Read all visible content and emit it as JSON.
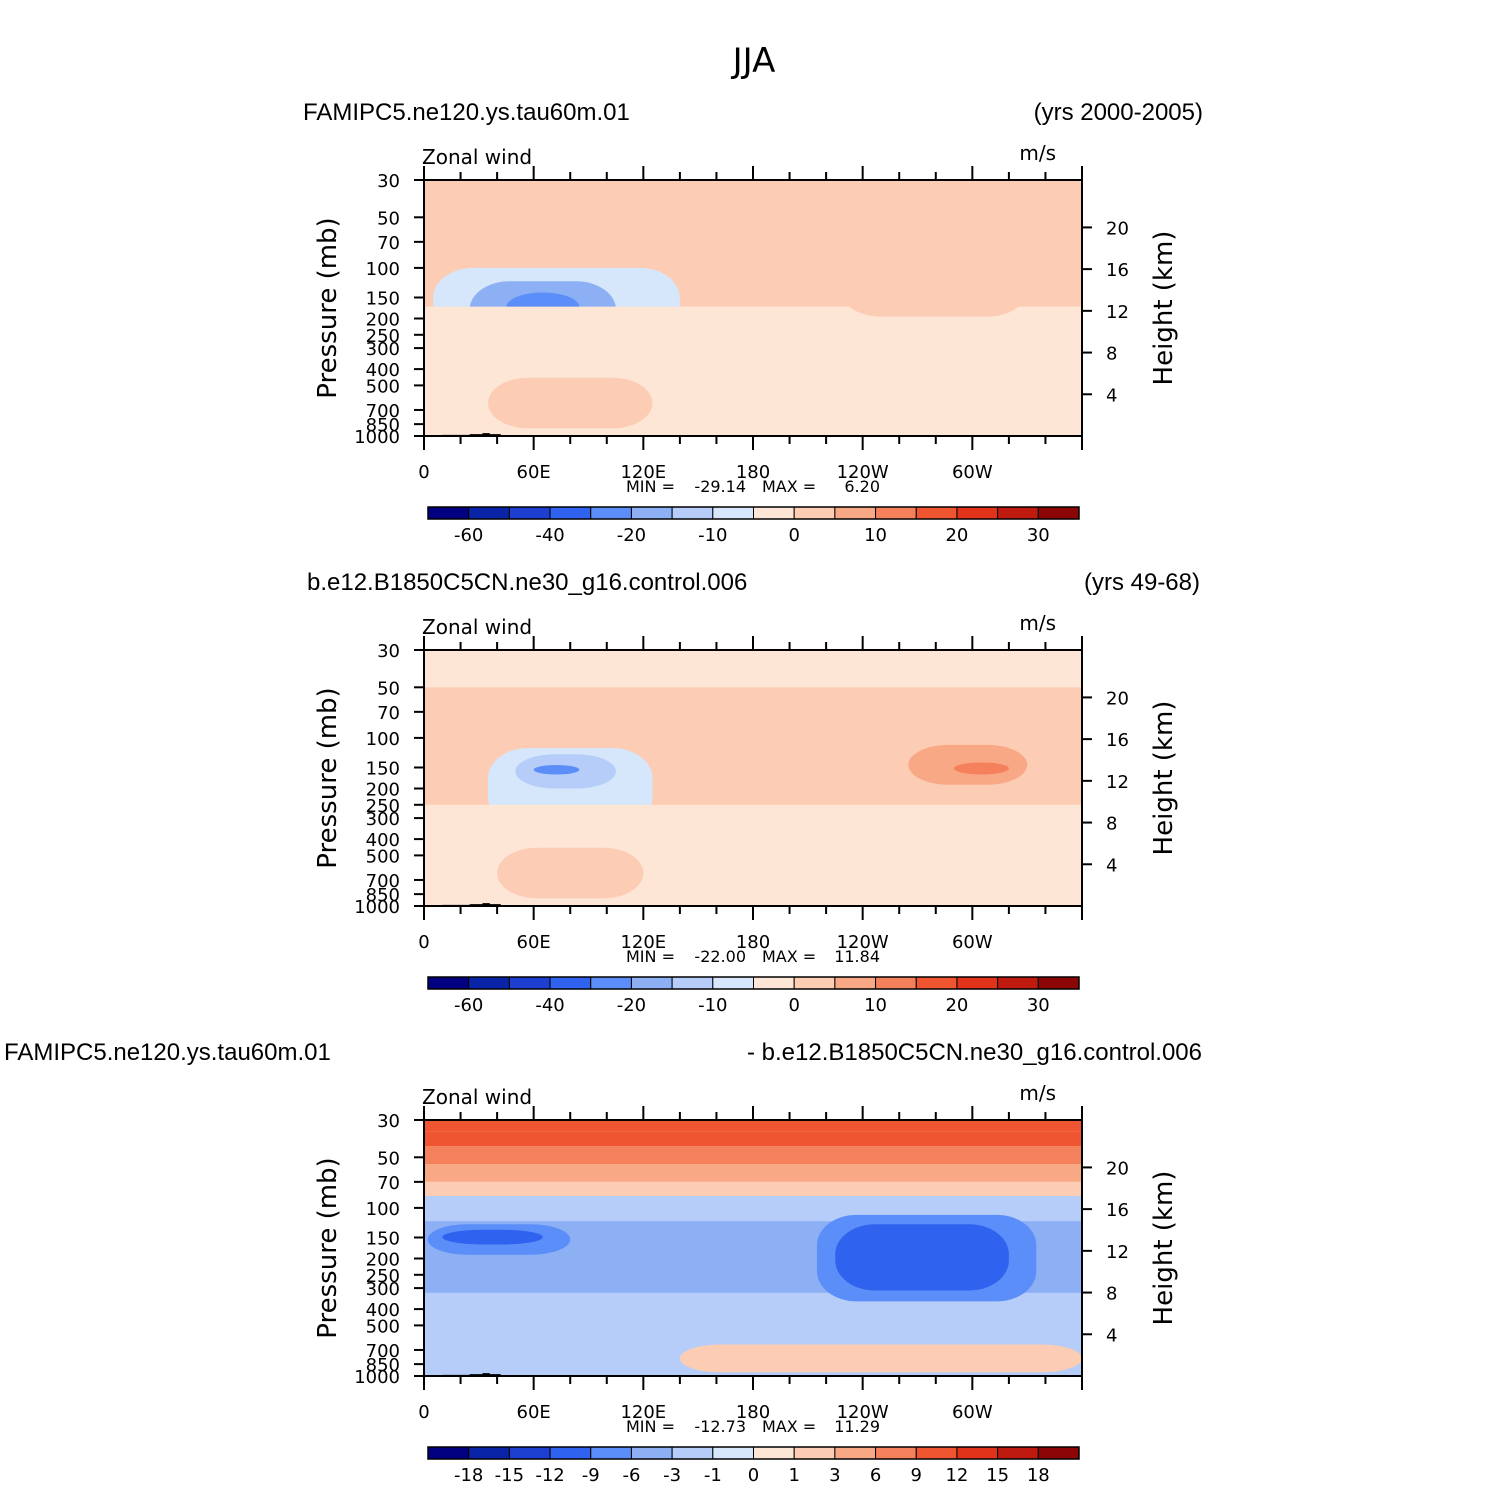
{
  "figure": {
    "title": "JJA",
    "panel_count": 3
  },
  "colors": {
    "main_palette": [
      "#000080",
      "#0a24a8",
      "#1c3fd0",
      "#2f62ee",
      "#5b8ef8",
      "#8db0f5",
      "#b5cdf8",
      "#d6e6fb",
      "#fde6d6",
      "#fccdb4",
      "#f9a886",
      "#f5805c",
      "#ef5530",
      "#e1331a",
      "#be1a10",
      "#8c0606"
    ],
    "background_field": "#fde6d6",
    "topography": "#000000"
  },
  "chart_data": [
    {
      "type": "contour",
      "variable": "Zonal wind",
      "units": "m/s",
      "case_label": "FAMIPC5.ne120.ys.tau60m.01",
      "period_label": "(yrs 2000-2005)",
      "x_ticks": [
        "0",
        "60E",
        "120E",
        "180",
        "120W",
        "60W"
      ],
      "x_range_deg": [
        0,
        360
      ],
      "ylabel": "Pressure  (mb)",
      "y_ticks": [
        "30",
        "50",
        "70",
        "100",
        "150",
        "200",
        "250",
        "300",
        "400",
        "500",
        "700",
        "850",
        "1000"
      ],
      "ylabel_right": "Height  (km)",
      "y_ticks_right": [
        "20",
        "16",
        "12",
        "8",
        "4"
      ],
      "min_label": "MIN = ",
      "min_value": "-29.14",
      "max_label": "MAX = ",
      "max_value": "6.20",
      "colorbar_labels": [
        "-60",
        "-40",
        "-20",
        "-10",
        "0",
        "10",
        "20",
        "30"
      ],
      "contour_levels": [
        -70,
        -60,
        -50,
        -40,
        -30,
        -20,
        -15,
        -10,
        -5,
        0,
        5,
        10,
        15,
        20,
        25,
        30
      ],
      "features": [
        {
          "label": "upper layer",
          "lon": [
            0,
            360
          ],
          "p": [
            30,
            55
          ],
          "value": 3
        },
        {
          "label": "Asian easterly jet outer",
          "lon": [
            5,
            140
          ],
          "p": [
            100,
            400
          ],
          "value": -7
        },
        {
          "label": "Asian easterly jet core",
          "lon": [
            25,
            105
          ],
          "p": [
            120,
            260
          ],
          "value": -17
        },
        {
          "label": "Asian easterly jet peak",
          "lon": [
            45,
            85
          ],
          "p": [
            140,
            210
          ],
          "value": -27
        },
        {
          "label": "tropical easterlies",
          "lon": [
            0,
            360
          ],
          "p": [
            170,
            1000
          ],
          "value": -3
        },
        {
          "label": "upper westerlies east",
          "lon": [
            228,
            330
          ],
          "p": [
            95,
            195
          ],
          "value": 4
        },
        {
          "label": "low-level westerlies (monsoon)",
          "lon": [
            35,
            125
          ],
          "p": [
            450,
            900
          ],
          "value": 4
        }
      ]
    },
    {
      "type": "contour",
      "variable": "Zonal wind",
      "units": "m/s",
      "case_label": "b.e12.B1850C5CN.ne30_g16.control.006",
      "period_label": "(yrs 49-68)",
      "x_ticks": [
        "0",
        "60E",
        "120E",
        "180",
        "120W",
        "60W"
      ],
      "x_range_deg": [
        0,
        360
      ],
      "ylabel": "Pressure  (mb)",
      "y_ticks": [
        "30",
        "50",
        "70",
        "100",
        "150",
        "200",
        "250",
        "300",
        "400",
        "500",
        "700",
        "850",
        "1000"
      ],
      "ylabel_right": "Height  (km)",
      "y_ticks_right": [
        "20",
        "16",
        "12",
        "8",
        "4"
      ],
      "min_label": "MIN = ",
      "min_value": "-22.00",
      "max_label": "MAX = ",
      "max_value": "11.84",
      "colorbar_labels": [
        "-60",
        "-40",
        "-20",
        "-10",
        "0",
        "10",
        "20",
        "30"
      ],
      "contour_levels": [
        -70,
        -60,
        -50,
        -40,
        -30,
        -20,
        -15,
        -10,
        -5,
        0,
        5,
        10,
        15,
        20,
        25,
        30
      ],
      "features": [
        {
          "label": "upper layer",
          "lon": [
            0,
            360
          ],
          "p": [
            30,
            50
          ],
          "value": -3
        },
        {
          "label": "Asian easterly jet outer",
          "lon": [
            35,
            125
          ],
          "p": [
            115,
            340
          ],
          "value": -7
        },
        {
          "label": "Asian easterly jet core",
          "lon": [
            50,
            105
          ],
          "p": [
            125,
            200
          ],
          "value": -14
        },
        {
          "label": "Asian easterly jet peak",
          "lon": [
            60,
            85
          ],
          "p": [
            145,
            165
          ],
          "value": -21
        },
        {
          "label": "upper westerlies",
          "lon": [
            210,
            360
          ],
          "p": [
            95,
            210
          ],
          "value": 4
        },
        {
          "label": "westerly core",
          "lon": [
            265,
            330
          ],
          "p": [
            110,
            190
          ],
          "value": 9
        },
        {
          "label": "westerly peak",
          "lon": [
            290,
            320
          ],
          "p": [
            140,
            165
          ],
          "value": 11
        },
        {
          "label": "tropical easterlies",
          "lon": [
            0,
            360
          ],
          "p": [
            250,
            1000
          ],
          "value": -3
        },
        {
          "label": "low-level westerlies (monsoon)",
          "lon": [
            40,
            120
          ],
          "p": [
            450,
            900
          ],
          "value": 4
        }
      ]
    },
    {
      "type": "contour",
      "variable": "Zonal wind",
      "units": "m/s",
      "case_label": "FAMIPC5.ne120.ys.tau60m.01",
      "period_label": "- b.e12.B1850C5CN.ne30_g16.control.006",
      "x_ticks": [
        "0",
        "60E",
        "120E",
        "180",
        "120W",
        "60W"
      ],
      "x_range_deg": [
        0,
        360
      ],
      "ylabel": "Pressure  (mb)",
      "y_ticks": [
        "30",
        "50",
        "70",
        "100",
        "150",
        "200",
        "250",
        "300",
        "400",
        "500",
        "700",
        "850",
        "1000"
      ],
      "ylabel_right": "Height  (km)",
      "y_ticks_right": [
        "20",
        "16",
        "12",
        "8",
        "4"
      ],
      "min_label": "MIN = ",
      "min_value": "-12.73",
      "max_label": "MAX = ",
      "max_value": "11.29",
      "colorbar_labels": [
        "-18",
        "-15",
        "-12",
        "-9",
        "-6",
        "-3",
        "-1",
        "0",
        "1",
        "3",
        "6",
        "9",
        "12",
        "15",
        "18"
      ],
      "contour_levels": [
        -21,
        -18,
        -15,
        -12,
        -9,
        -6,
        -3,
        -1,
        0,
        1,
        3,
        6,
        9,
        12,
        15,
        18
      ],
      "features": [
        {
          "label": "strat layer 1",
          "lon": [
            0,
            360
          ],
          "p": [
            30,
            35
          ],
          "value": 11
        },
        {
          "label": "strat layer 2",
          "lon": [
            0,
            360
          ],
          "p": [
            35,
            43
          ],
          "value": 10
        },
        {
          "label": "strat layer 3",
          "lon": [
            0,
            360
          ],
          "p": [
            43,
            55
          ],
          "value": 7
        },
        {
          "label": "strat layer 4",
          "lon": [
            0,
            360
          ],
          "p": [
            55,
            70
          ],
          "value": 4
        },
        {
          "label": "strat layer 5",
          "lon": [
            0,
            360
          ],
          "p": [
            70,
            85
          ],
          "value": 2
        },
        {
          "label": "trop weak negative",
          "lon": [
            0,
            360
          ],
          "p": [
            85,
            1000
          ],
          "value": -2
        },
        {
          "label": "band -3 to -6",
          "lon": [
            0,
            360
          ],
          "p": [
            120,
            320
          ],
          "value": -5
        },
        {
          "label": "west jet outer",
          "lon": [
            2,
            80
          ],
          "p": [
            125,
            190
          ],
          "value": -8
        },
        {
          "label": "west jet core",
          "lon": [
            10,
            65
          ],
          "p": [
            135,
            165
          ],
          "value": -10
        },
        {
          "label": "east jet outer",
          "lon": [
            215,
            335
          ],
          "p": [
            110,
            360
          ],
          "value": -8
        },
        {
          "label": "east jet core",
          "lon": [
            225,
            320
          ],
          "p": [
            125,
            310
          ],
          "value": -10
        },
        {
          "label": "east jet peak",
          "lon": [
            250,
            270
          ],
          "p": [
            145,
            170
          ],
          "value": -12
        },
        {
          "label": "low-level positive",
          "lon": [
            140,
            360
          ],
          "p": [
            650,
            950
          ],
          "value": 2
        }
      ]
    }
  ]
}
